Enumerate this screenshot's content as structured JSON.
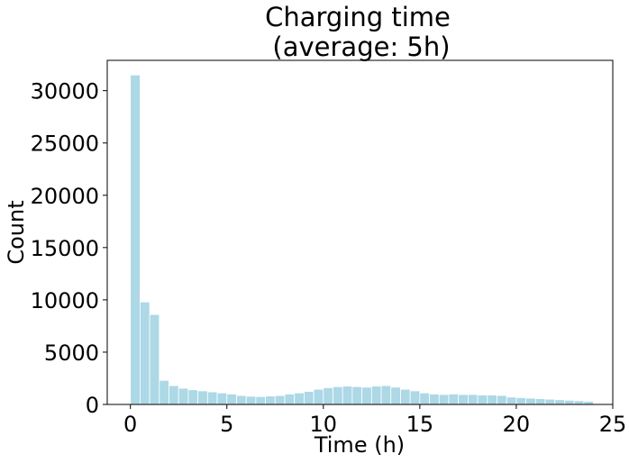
{
  "chart_data": {
    "type": "bar",
    "title_line1": "Charging time",
    "title_line2": "(average: 5h)",
    "xlabel": "Time (h)",
    "ylabel": "Count",
    "xlim": [
      -1.2,
      25
    ],
    "ylim": [
      0,
      32900
    ],
    "xticks": [
      0,
      5,
      10,
      15,
      20,
      25
    ],
    "yticks": [
      0,
      5000,
      10000,
      15000,
      20000,
      25000,
      30000
    ],
    "bin_width": 0.5,
    "bins_start": [
      0,
      0.5,
      1,
      1.5,
      2,
      2.5,
      3,
      3.5,
      4,
      4.5,
      5,
      5.5,
      6,
      6.5,
      7,
      7.5,
      8,
      8.5,
      9,
      9.5,
      10,
      10.5,
      11,
      11.5,
      12,
      12.5,
      13,
      13.5,
      14,
      14.5,
      15,
      15.5,
      16,
      16.5,
      17,
      17.5,
      18,
      18.5,
      19,
      19.5,
      20,
      20.5,
      21,
      21.5,
      22,
      22.5,
      23,
      23.5
    ],
    "values": [
      31500,
      9800,
      8600,
      2300,
      1800,
      1550,
      1400,
      1300,
      1200,
      1100,
      1000,
      850,
      780,
      750,
      800,
      850,
      1000,
      1100,
      1250,
      1450,
      1600,
      1700,
      1750,
      1700,
      1650,
      1750,
      1800,
      1650,
      1450,
      1300,
      1100,
      1000,
      950,
      1000,
      950,
      950,
      900,
      900,
      850,
      700,
      650,
      600,
      550,
      500,
      450,
      400,
      350,
      300
    ],
    "bar_color": "#add8e6",
    "grid": false,
    "legend": false
  }
}
